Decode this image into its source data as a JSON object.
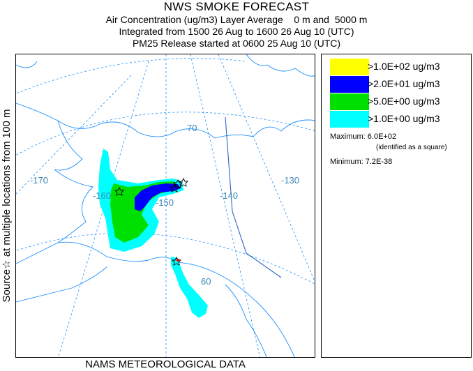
{
  "header": {
    "title": "NWS SMOKE FORECAST",
    "line2": "Air Concentration (ug/m3) Layer Average    0 m and  5000 m",
    "line3": "Integrated from 1500 26 Aug to 1600 26 Aug 10 (UTC)",
    "line4": "PM25 Release started at 0600 25 Aug 10 (UTC)"
  },
  "side_label": "Source☆  at multiple locations   from   100 m",
  "footer": "NAMS METEOROLOGICAL DATA",
  "map": {
    "graticule_labels": {
      "lon_170": "-170",
      "lon_160": "-160",
      "lon_150": "-150",
      "lon_140": "-140",
      "lon_130": "-130",
      "lat_70": "70",
      "lat_60": "60"
    },
    "colors": {
      "land_line": "#1e90ff",
      "graticule": "#1e90ff",
      "label": "#3a86b8",
      "border": "#2b66c8"
    }
  },
  "legend": {
    "entries": [
      {
        "label": ">1.0E+02 ug/m3",
        "color": "#ffff00"
      },
      {
        "label": ">2.0E+01 ug/m3",
        "color": "#0000ff"
      },
      {
        "label": ">5.0E+00 ug/m3",
        "color": "#00e000"
      },
      {
        "label": ">1.0E+00 ug/m3",
        "color": "#00ffff"
      }
    ],
    "maximum": "Maximum: 6.0E+02",
    "maximum_note": "(identified as a square)",
    "minimum": "Minimum: 7.2E-38"
  }
}
